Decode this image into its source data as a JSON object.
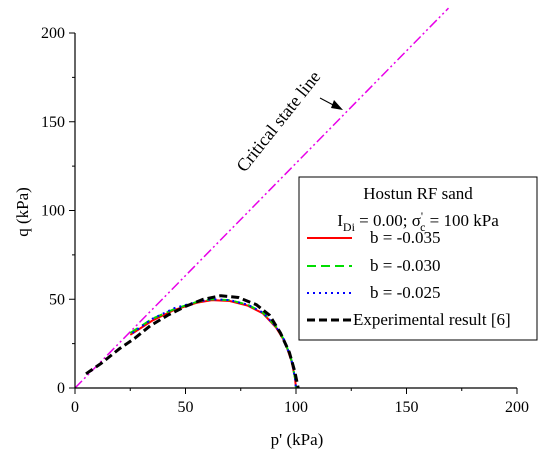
{
  "chart_data": {
    "type": "line",
    "xlabel": "p' (kPa)",
    "ylabel": "q (kPa)",
    "xlim": [
      0,
      200
    ],
    "ylim": [
      0,
      200
    ],
    "xticks": [
      0,
      50,
      100,
      150,
      200
    ],
    "yticks": [
      0,
      50,
      100,
      150,
      200
    ],
    "grid": false,
    "legend": {
      "position": "right",
      "title": "Hostun RF sand",
      "subtitle": "I_Di = 0.00; σ'_c = 100 kPa"
    },
    "annotations": [
      {
        "text": "Critical state line",
        "points_to": "critical state line"
      }
    ],
    "critical_state_line": {
      "color": "#e800e8",
      "x": [
        0,
        169
      ],
      "y": [
        0,
        214
      ]
    },
    "series": [
      {
        "name": "b = -0.035",
        "color": "#ff0000",
        "style": "solid",
        "x": [
          25,
          35,
          45,
          55,
          62,
          70,
          78,
          85,
          91,
          95,
          98,
          99.5,
          100
        ],
        "y": [
          30,
          38,
          44,
          48,
          49.5,
          49,
          46.5,
          42,
          34,
          26,
          15,
          6,
          0
        ]
      },
      {
        "name": "b = -0.030",
        "color": "#00dd00",
        "style": "dashed",
        "x": [
          25,
          35,
          45,
          55,
          62,
          70,
          78,
          85,
          91,
          95,
          98,
          99.5,
          100
        ],
        "y": [
          31,
          39,
          44.5,
          48.5,
          50,
          49.5,
          47,
          42.5,
          34.5,
          26.5,
          15.5,
          6,
          0
        ]
      },
      {
        "name": "b = -0.025",
        "color": "#0000ff",
        "style": "dotted",
        "x": [
          26,
          35,
          45,
          55,
          62,
          70,
          78,
          85,
          91,
          95,
          98,
          99.5,
          100
        ],
        "y": [
          31,
          39,
          45,
          48.5,
          50,
          49.5,
          47,
          42.5,
          34.5,
          26.5,
          15.5,
          6,
          0
        ]
      },
      {
        "name": "Experimental result [6]",
        "color": "#000000",
        "style": "dashed-bold",
        "x": [
          5,
          12,
          20,
          27,
          34,
          42,
          50,
          58,
          66,
          74,
          82,
          88,
          93,
          97,
          99.5,
          101
        ],
        "y": [
          8,
          14,
          22,
          28,
          35,
          41,
          46,
          50,
          52,
          51,
          47,
          41,
          31,
          20,
          9,
          0
        ]
      }
    ]
  }
}
